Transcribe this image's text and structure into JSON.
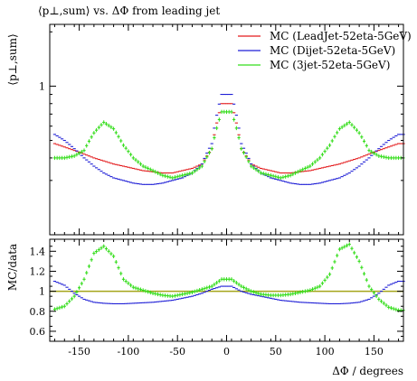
{
  "chart_data": [
    {
      "type": "scatter",
      "title": "⟨p⊥,sum⟩ vs. ΔΦ from leading jet",
      "ylabel": "⟨p⊥,sum⟩",
      "xlim": [
        -180,
        180
      ],
      "ylim": [
        0.15,
        2.2
      ],
      "yscale": "log",
      "yticks": [
        {
          "value": 1,
          "label": "1"
        }
      ],
      "grid": false,
      "legend": "top-right",
      "x": [
        -175,
        -165,
        -155,
        -145,
        -135,
        -125,
        -115,
        -105,
        -95,
        -85,
        -75,
        -65,
        -55,
        -45,
        -35,
        -25,
        -15,
        -5,
        5,
        15,
        25,
        35,
        45,
        55,
        65,
        75,
        85,
        95,
        105,
        115,
        125,
        135,
        145,
        155,
        165,
        175
      ],
      "series": [
        {
          "name": "MC (LeadJet-52eta-5GeV)",
          "color": "#e31a1c",
          "values": [
            0.48,
            0.46,
            0.44,
            0.42,
            0.4,
            0.385,
            0.37,
            0.36,
            0.35,
            0.34,
            0.335,
            0.33,
            0.33,
            0.34,
            0.35,
            0.37,
            0.45,
            0.8,
            0.8,
            0.45,
            0.37,
            0.35,
            0.34,
            0.33,
            0.33,
            0.335,
            0.34,
            0.35,
            0.36,
            0.37,
            0.385,
            0.4,
            0.42,
            0.44,
            0.46,
            0.48
          ]
        },
        {
          "name": "MC (Dijet-52eta-5GeV)",
          "color": "#1f1fd6",
          "values": [
            0.54,
            0.5,
            0.45,
            0.4,
            0.36,
            0.33,
            0.31,
            0.3,
            0.29,
            0.285,
            0.285,
            0.29,
            0.3,
            0.31,
            0.33,
            0.37,
            0.48,
            0.9,
            0.9,
            0.48,
            0.37,
            0.33,
            0.31,
            0.3,
            0.29,
            0.285,
            0.285,
            0.29,
            0.3,
            0.31,
            0.33,
            0.36,
            0.4,
            0.45,
            0.5,
            0.54
          ]
        },
        {
          "name": "MC (3jet-52eta-5GeV)",
          "color": "#33dd1a",
          "values": [
            0.4,
            0.4,
            0.41,
            0.44,
            0.55,
            0.63,
            0.58,
            0.47,
            0.4,
            0.36,
            0.34,
            0.32,
            0.31,
            0.32,
            0.33,
            0.36,
            0.45,
            0.72,
            0.72,
            0.45,
            0.36,
            0.33,
            0.32,
            0.31,
            0.32,
            0.34,
            0.36,
            0.4,
            0.47,
            0.58,
            0.63,
            0.55,
            0.44,
            0.41,
            0.4,
            0.4
          ]
        }
      ]
    },
    {
      "type": "scatter",
      "ylabel": "MC/data",
      "xlabel": "ΔΦ / degrees",
      "xlim": [
        -180,
        180
      ],
      "ylim": [
        0.5,
        1.52
      ],
      "yticks": [
        {
          "value": 0.6,
          "label": "0.6"
        },
        {
          "value": 0.8,
          "label": "0.8"
        },
        {
          "value": 1.0,
          "label": "1"
        },
        {
          "value": 1.2,
          "label": "1.2"
        },
        {
          "value": 1.4,
          "label": "1.4"
        }
      ],
      "xticks": [
        {
          "value": -150,
          "label": "-150"
        },
        {
          "value": -100,
          "label": "-100"
        },
        {
          "value": -50,
          "label": "-50"
        },
        {
          "value": 0,
          "label": "0"
        },
        {
          "value": 50,
          "label": "50"
        },
        {
          "value": 100,
          "label": "100"
        },
        {
          "value": 150,
          "label": "150"
        }
      ],
      "reference_line": {
        "value": 1.0,
        "color": "#a5a51a"
      },
      "grid": false,
      "x": [
        -175,
        -165,
        -155,
        -145,
        -135,
        -125,
        -115,
        -105,
        -95,
        -85,
        -75,
        -65,
        -55,
        -45,
        -35,
        -25,
        -15,
        -5,
        5,
        15,
        25,
        35,
        45,
        55,
        65,
        75,
        85,
        95,
        105,
        115,
        125,
        135,
        145,
        155,
        165,
        175
      ],
      "series": [
        {
          "name": "MC (Dijet-52eta-5GeV)",
          "color": "#1f1fd6",
          "values": [
            1.1,
            1.06,
            0.98,
            0.92,
            0.89,
            0.88,
            0.875,
            0.875,
            0.88,
            0.885,
            0.89,
            0.9,
            0.91,
            0.93,
            0.95,
            0.98,
            1.02,
            1.05,
            1.05,
            1.0,
            0.97,
            0.95,
            0.93,
            0.91,
            0.9,
            0.89,
            0.885,
            0.88,
            0.875,
            0.875,
            0.88,
            0.89,
            0.92,
            0.98,
            1.06,
            1.1
          ]
        },
        {
          "name": "MC (3jet-52eta-5GeV)",
          "color": "#33dd1a",
          "values": [
            0.82,
            0.85,
            0.95,
            1.12,
            1.38,
            1.45,
            1.35,
            1.12,
            1.04,
            1.01,
            0.98,
            0.96,
            0.95,
            0.97,
            0.99,
            1.02,
            1.05,
            1.12,
            1.12,
            1.05,
            1.0,
            0.97,
            0.96,
            0.96,
            0.97,
            0.99,
            1.01,
            1.05,
            1.17,
            1.42,
            1.47,
            1.3,
            1.05,
            0.92,
            0.84,
            0.81
          ]
        }
      ]
    }
  ]
}
